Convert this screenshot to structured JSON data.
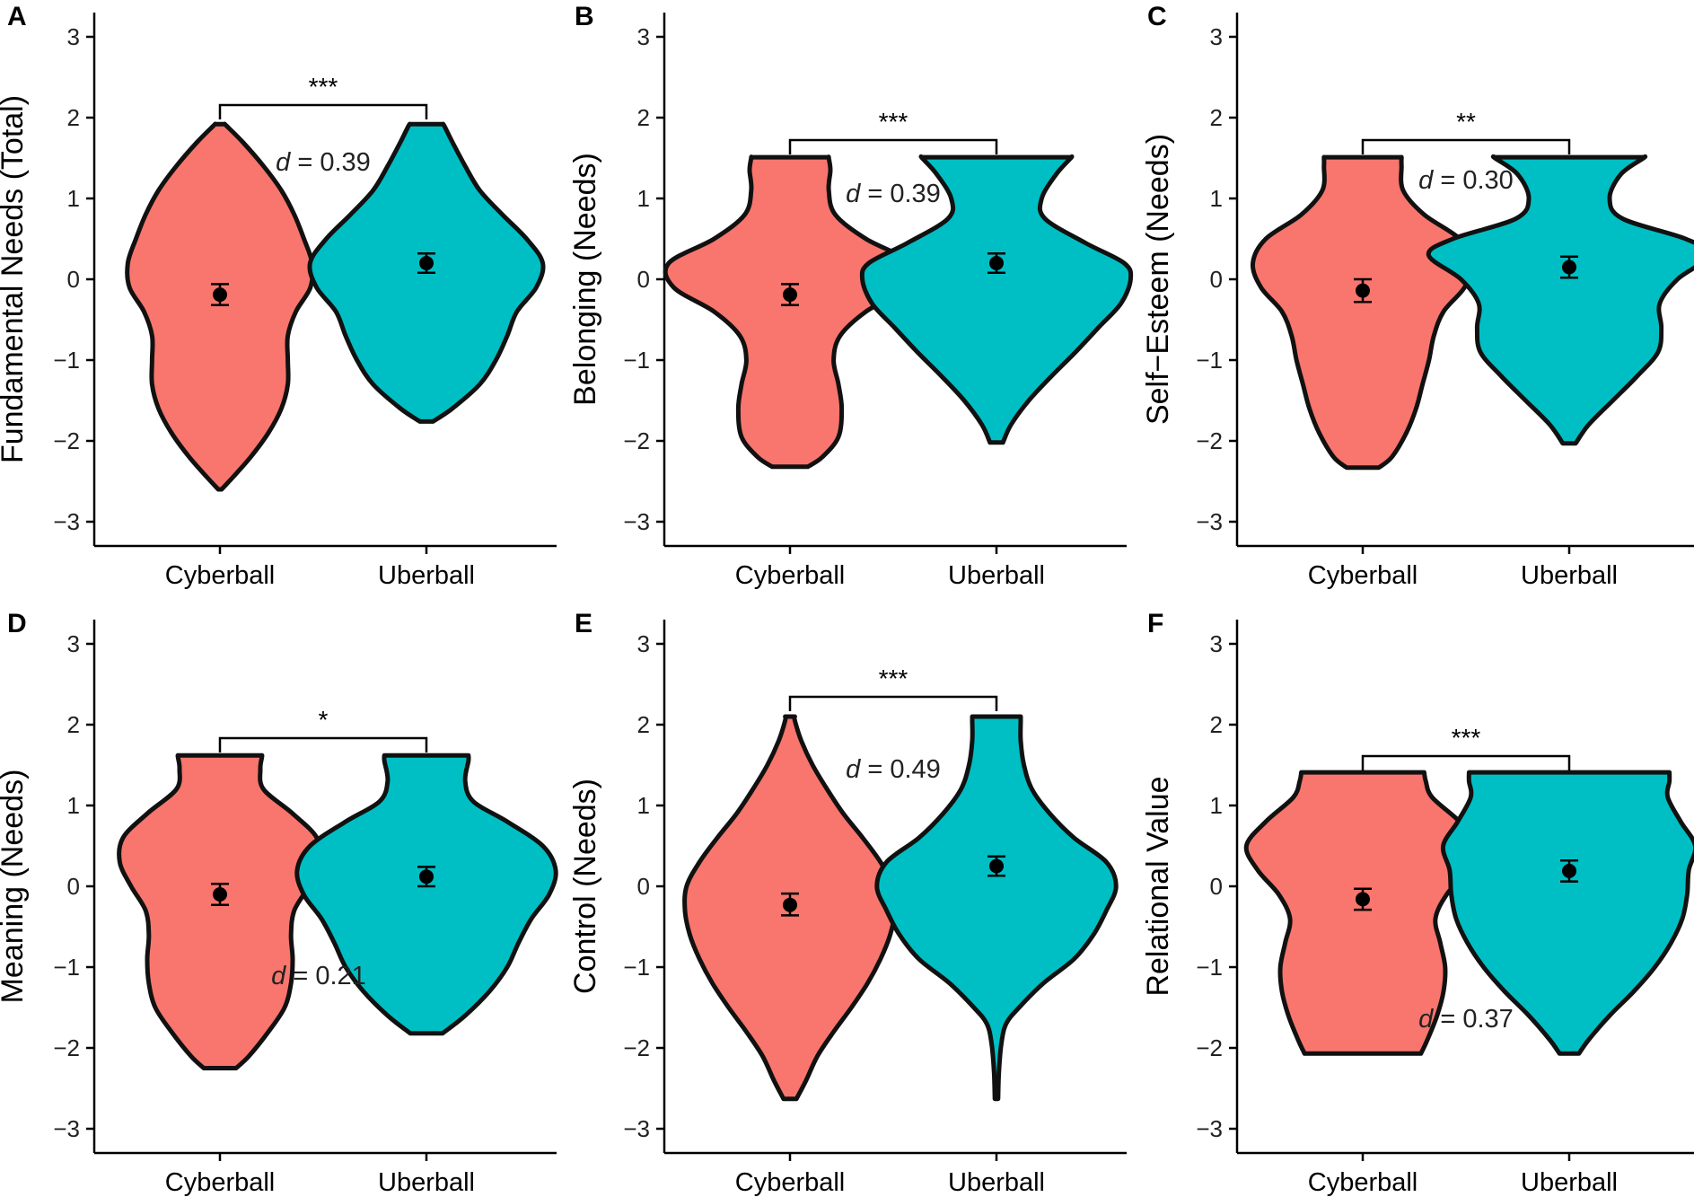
{
  "colors": {
    "Cyberball": "#F8766D",
    "Uberball": "#00BFC4",
    "outline": "#111111"
  },
  "chart_data": [
    {
      "type": "violin",
      "panel": "A",
      "ylabel": "Fundamental Needs (Total)",
      "ylim": [
        -3.3,
        3.3
      ],
      "yticks": [
        -3,
        -2,
        -1,
        0,
        1,
        2,
        3
      ],
      "ytick_labels": [
        "−3",
        "−2",
        "−1",
        "0",
        "1",
        "2",
        "3"
      ],
      "categories": [
        "Cyberball",
        "Uberball"
      ],
      "significance": "***",
      "effect_symbol": "d",
      "effect_value": "= 0.39",
      "series": [
        {
          "name": "Cyberball",
          "mean": -0.19,
          "ci": [
            -0.32,
            -0.06
          ],
          "profile": [
            [
              -2.6,
              0.01
            ],
            [
              -2.45,
              0.08
            ],
            [
              -2.2,
              0.19
            ],
            [
              -1.9,
              0.3
            ],
            [
              -1.6,
              0.38
            ],
            [
              -1.3,
              0.42
            ],
            [
              -1.0,
              0.42
            ],
            [
              -0.7,
              0.42
            ],
            [
              -0.4,
              0.47
            ],
            [
              -0.1,
              0.56
            ],
            [
              0.2,
              0.57
            ],
            [
              0.5,
              0.52
            ],
            [
              0.8,
              0.46
            ],
            [
              1.1,
              0.38
            ],
            [
              1.4,
              0.27
            ],
            [
              1.7,
              0.14
            ],
            [
              1.9,
              0.04
            ],
            [
              1.92,
              0.03
            ]
          ]
        },
        {
          "name": "Uberball",
          "mean": 0.2,
          "ci": [
            0.08,
            0.32
          ],
          "profile": [
            [
              -1.76,
              0.04
            ],
            [
              -1.6,
              0.16
            ],
            [
              -1.3,
              0.33
            ],
            [
              -1.0,
              0.43
            ],
            [
              -0.7,
              0.5
            ],
            [
              -0.4,
              0.56
            ],
            [
              -0.1,
              0.68
            ],
            [
              0.2,
              0.72
            ],
            [
              0.5,
              0.62
            ],
            [
              0.8,
              0.47
            ],
            [
              1.1,
              0.33
            ],
            [
              1.4,
              0.24
            ],
            [
              1.7,
              0.16
            ],
            [
              1.9,
              0.11
            ],
            [
              1.92,
              0.1
            ]
          ]
        }
      ]
    },
    {
      "type": "violin",
      "panel": "B",
      "ylabel": "Belonging (Needs)",
      "ylim": [
        -3.3,
        3.3
      ],
      "yticks": [
        -3,
        -2,
        -1,
        0,
        1,
        2,
        3
      ],
      "ytick_labels": [
        "−3",
        "−2",
        "−1",
        "0",
        "1",
        "2",
        "3"
      ],
      "categories": [
        "Cyberball",
        "Uberball"
      ],
      "significance": "***",
      "effect_symbol": "d",
      "effect_value": "= 0.39",
      "series": [
        {
          "name": "Cyberball",
          "mean": -0.19,
          "ci": [
            -0.32,
            -0.06
          ],
          "profile": [
            [
              -2.32,
              0.11
            ],
            [
              -2.2,
              0.2
            ],
            [
              -1.95,
              0.3
            ],
            [
              -1.6,
              0.32
            ],
            [
              -1.3,
              0.3
            ],
            [
              -1.0,
              0.27
            ],
            [
              -0.7,
              0.31
            ],
            [
              -0.4,
              0.47
            ],
            [
              -0.1,
              0.72
            ],
            [
              0.2,
              0.75
            ],
            [
              0.5,
              0.47
            ],
            [
              0.8,
              0.28
            ],
            [
              1.1,
              0.24
            ],
            [
              1.35,
              0.25
            ],
            [
              1.5,
              0.24
            ],
            [
              1.51,
              0.24
            ]
          ]
        },
        {
          "name": "Uberball",
          "mean": 0.2,
          "ci": [
            0.08,
            0.32
          ],
          "profile": [
            [
              -2.02,
              0.04
            ],
            [
              -1.8,
              0.09
            ],
            [
              -1.5,
              0.2
            ],
            [
              -1.2,
              0.34
            ],
            [
              -0.9,
              0.49
            ],
            [
              -0.6,
              0.63
            ],
            [
              -0.3,
              0.77
            ],
            [
              0.0,
              0.83
            ],
            [
              0.2,
              0.79
            ],
            [
              0.45,
              0.55
            ],
            [
              0.75,
              0.3
            ],
            [
              1.0,
              0.28
            ],
            [
              1.3,
              0.37
            ],
            [
              1.5,
              0.46
            ],
            [
              1.51,
              0.46
            ]
          ]
        }
      ]
    },
    {
      "type": "violin",
      "panel": "C",
      "ylabel": "Self−Esteem (Needs)",
      "ylim": [
        -3.3,
        3.3
      ],
      "yticks": [
        -3,
        -2,
        -1,
        0,
        1,
        2,
        3
      ],
      "ytick_labels": [
        "−3",
        "−2",
        "−1",
        "0",
        "1",
        "2",
        "3"
      ],
      "categories": [
        "Cyberball",
        "Uberball"
      ],
      "significance": "**",
      "effect_symbol": "d",
      "effect_value": "= 0.30",
      "series": [
        {
          "name": "Cyberball",
          "mean": -0.14,
          "ci": [
            -0.28,
            0.0
          ],
          "profile": [
            [
              -2.33,
              0.1
            ],
            [
              -2.2,
              0.18
            ],
            [
              -1.9,
              0.27
            ],
            [
              -1.6,
              0.33
            ],
            [
              -1.3,
              0.37
            ],
            [
              -1.0,
              0.41
            ],
            [
              -0.7,
              0.44
            ],
            [
              -0.4,
              0.5
            ],
            [
              -0.1,
              0.63
            ],
            [
              0.2,
              0.68
            ],
            [
              0.5,
              0.6
            ],
            [
              0.8,
              0.38
            ],
            [
              1.1,
              0.25
            ],
            [
              1.4,
              0.24
            ],
            [
              1.5,
              0.24
            ],
            [
              1.51,
              0.24
            ]
          ]
        },
        {
          "name": "Uberball",
          "mean": 0.15,
          "ci": [
            0.02,
            0.28
          ],
          "profile": [
            [
              -2.03,
              0.04
            ],
            [
              -1.8,
              0.12
            ],
            [
              -1.5,
              0.27
            ],
            [
              -1.2,
              0.42
            ],
            [
              -0.9,
              0.55
            ],
            [
              -0.6,
              0.57
            ],
            [
              -0.3,
              0.56
            ],
            [
              0.0,
              0.67
            ],
            [
              0.3,
              0.87
            ],
            [
              0.5,
              0.72
            ],
            [
              0.75,
              0.33
            ],
            [
              1.0,
              0.25
            ],
            [
              1.3,
              0.32
            ],
            [
              1.5,
              0.46
            ],
            [
              1.51,
              0.46
            ]
          ]
        }
      ]
    },
    {
      "type": "violin",
      "panel": "D",
      "ylabel": "Meaning (Needs)",
      "ylim": [
        -3.3,
        3.3
      ],
      "yticks": [
        -3,
        -2,
        -1,
        0,
        1,
        2,
        3
      ],
      "ytick_labels": [
        "−3",
        "−2",
        "−1",
        "0",
        "1",
        "2",
        "3"
      ],
      "categories": [
        "Cyberball",
        "Uberball"
      ],
      "significance": "*",
      "effect_symbol": "d",
      "effect_value": "= 0.21",
      "series": [
        {
          "name": "Cyberball",
          "mean": -0.1,
          "ci": [
            -0.23,
            0.03
          ],
          "profile": [
            [
              -2.25,
              0.1
            ],
            [
              -2.1,
              0.18
            ],
            [
              -1.8,
              0.3
            ],
            [
              -1.5,
              0.4
            ],
            [
              -1.2,
              0.44
            ],
            [
              -0.9,
              0.45
            ],
            [
              -0.6,
              0.44
            ],
            [
              -0.3,
              0.46
            ],
            [
              0.0,
              0.55
            ],
            [
              0.3,
              0.62
            ],
            [
              0.6,
              0.6
            ],
            [
              0.9,
              0.45
            ],
            [
              1.2,
              0.27
            ],
            [
              1.45,
              0.25
            ],
            [
              1.6,
              0.26
            ],
            [
              1.62,
              0.26
            ]
          ]
        },
        {
          "name": "Uberball",
          "mean": 0.12,
          "ci": [
            0.0,
            0.24
          ],
          "profile": [
            [
              -1.82,
              0.1
            ],
            [
              -1.6,
              0.24
            ],
            [
              -1.3,
              0.39
            ],
            [
              -1.0,
              0.5
            ],
            [
              -0.7,
              0.57
            ],
            [
              -0.4,
              0.65
            ],
            [
              -0.1,
              0.76
            ],
            [
              0.2,
              0.8
            ],
            [
              0.5,
              0.72
            ],
            [
              0.8,
              0.5
            ],
            [
              1.05,
              0.29
            ],
            [
              1.3,
              0.24
            ],
            [
              1.55,
              0.26
            ],
            [
              1.62,
              0.26
            ]
          ]
        }
      ]
    },
    {
      "type": "violin",
      "panel": "E",
      "ylabel": "Control (Needs)",
      "ylim": [
        -3.3,
        3.3
      ],
      "yticks": [
        -3,
        -2,
        -1,
        0,
        1,
        2,
        3
      ],
      "ytick_labels": [
        "−3",
        "−2",
        "−1",
        "0",
        "1",
        "2",
        "3"
      ],
      "categories": [
        "Cyberball",
        "Uberball"
      ],
      "significance": "***",
      "effect_symbol": "d",
      "effect_value": "= 0.49",
      "series": [
        {
          "name": "Cyberball",
          "mean": -0.23,
          "ci": [
            -0.36,
            -0.09
          ],
          "profile": [
            [
              -2.63,
              0.04
            ],
            [
              -2.4,
              0.1
            ],
            [
              -2.1,
              0.17
            ],
            [
              -1.8,
              0.27
            ],
            [
              -1.5,
              0.38
            ],
            [
              -1.2,
              0.48
            ],
            [
              -0.9,
              0.56
            ],
            [
              -0.6,
              0.62
            ],
            [
              -0.3,
              0.65
            ],
            [
              0.0,
              0.64
            ],
            [
              0.3,
              0.56
            ],
            [
              0.6,
              0.45
            ],
            [
              0.9,
              0.33
            ],
            [
              1.2,
              0.23
            ],
            [
              1.5,
              0.14
            ],
            [
              1.8,
              0.07
            ],
            [
              2.05,
              0.03
            ],
            [
              2.1,
              0.03
            ]
          ]
        },
        {
          "name": "Uberball",
          "mean": 0.25,
          "ci": [
            0.13,
            0.37
          ],
          "profile": [
            [
              -2.63,
              0.01
            ],
            [
              -2.3,
              0.015
            ],
            [
              -1.95,
              0.03
            ],
            [
              -1.7,
              0.06
            ],
            [
              -1.5,
              0.14
            ],
            [
              -1.2,
              0.29
            ],
            [
              -0.9,
              0.48
            ],
            [
              -0.6,
              0.6
            ],
            [
              -0.3,
              0.68
            ],
            [
              0.0,
              0.74
            ],
            [
              0.3,
              0.68
            ],
            [
              0.6,
              0.48
            ],
            [
              0.9,
              0.33
            ],
            [
              1.2,
              0.22
            ],
            [
              1.5,
              0.17
            ],
            [
              1.8,
              0.15
            ],
            [
              2.05,
              0.15
            ],
            [
              2.1,
              0.15
            ]
          ]
        }
      ]
    },
    {
      "type": "violin",
      "panel": "F",
      "ylabel": "Relational Value",
      "ylim": [
        -3.3,
        3.3
      ],
      "yticks": [
        -3,
        -2,
        -1,
        0,
        1,
        2,
        3
      ],
      "ytick_labels": [
        "−3",
        "−2",
        "−1",
        "0",
        "1",
        "2",
        "3"
      ],
      "categories": [
        "Cyberball",
        "Uberball"
      ],
      "significance": "***",
      "effect_symbol": "d",
      "effect_value": "= 0.37",
      "series": [
        {
          "name": "Cyberball",
          "mean": -0.16,
          "ci": [
            -0.29,
            -0.03
          ],
          "profile": [
            [
              -2.07,
              0.36
            ],
            [
              -1.9,
              0.4
            ],
            [
              -1.6,
              0.46
            ],
            [
              -1.3,
              0.5
            ],
            [
              -1.0,
              0.51
            ],
            [
              -0.7,
              0.48
            ],
            [
              -0.4,
              0.45
            ],
            [
              -0.1,
              0.52
            ],
            [
              0.2,
              0.65
            ],
            [
              0.5,
              0.72
            ],
            [
              0.8,
              0.6
            ],
            [
              1.1,
              0.43
            ],
            [
              1.3,
              0.39
            ],
            [
              1.41,
              0.38
            ]
          ]
        },
        {
          "name": "Uberball",
          "mean": 0.19,
          "ci": [
            0.06,
            0.32
          ],
          "profile": [
            [
              -2.07,
              0.06
            ],
            [
              -1.9,
              0.12
            ],
            [
              -1.6,
              0.25
            ],
            [
              -1.3,
              0.4
            ],
            [
              -1.0,
              0.53
            ],
            [
              -0.7,
              0.63
            ],
            [
              -0.4,
              0.7
            ],
            [
              -0.1,
              0.73
            ],
            [
              0.2,
              0.74
            ],
            [
              0.5,
              0.78
            ],
            [
              0.8,
              0.69
            ],
            [
              1.1,
              0.61
            ],
            [
              1.3,
              0.62
            ],
            [
              1.41,
              0.62
            ]
          ]
        }
      ]
    }
  ]
}
